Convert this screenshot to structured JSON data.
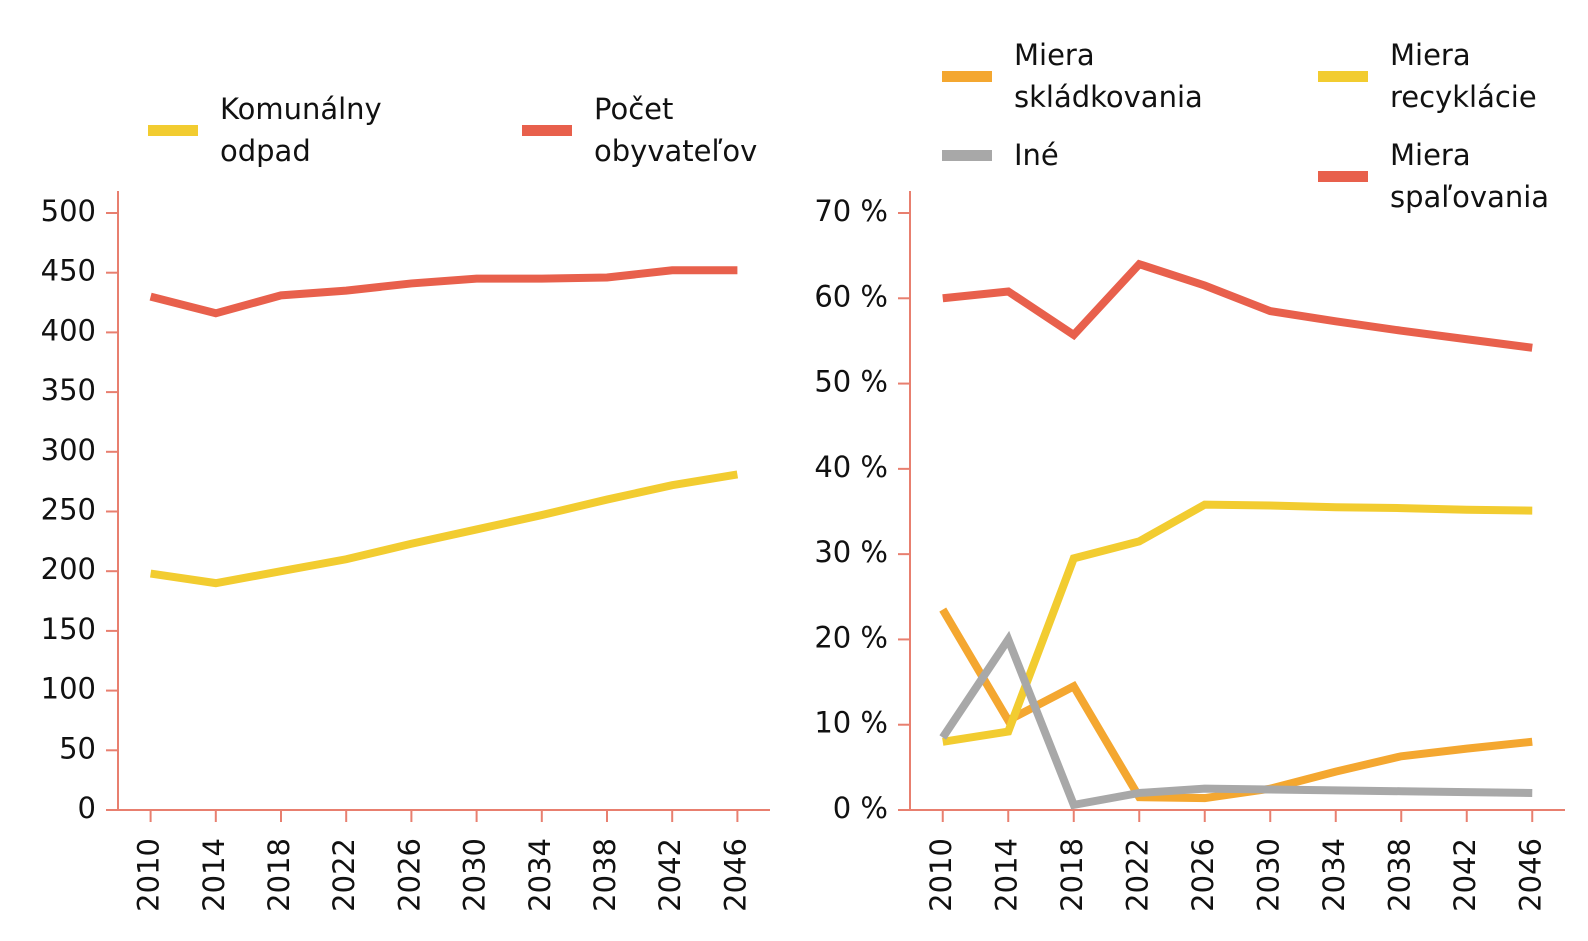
{
  "chart_data": [
    {
      "type": "line",
      "x": [
        2010,
        2014,
        2018,
        2022,
        2026,
        2030,
        2034,
        2038,
        2042,
        2046
      ],
      "series": [
        {
          "name": "Komunálny odpad",
          "color": "#f2cc30",
          "values": [
            198,
            190,
            200,
            210,
            223,
            235,
            247,
            260,
            272,
            281
          ]
        },
        {
          "name": "Počet obyvateľov",
          "color": "#e8604c",
          "values": [
            430,
            416,
            431,
            435,
            441,
            445,
            445,
            446,
            452,
            452
          ]
        }
      ],
      "xlim": [
        2008,
        2048
      ],
      "xticks": [
        2010,
        2014,
        2018,
        2022,
        2026,
        2030,
        2034,
        2038,
        2042,
        2046
      ],
      "ylim": [
        0,
        500
      ],
      "yticks": [
        0,
        50,
        100,
        150,
        200,
        250,
        300,
        350,
        400,
        450,
        500
      ]
    },
    {
      "type": "line",
      "x": [
        2010,
        2014,
        2018,
        2022,
        2026,
        2030,
        2034,
        2038,
        2042,
        2046
      ],
      "series": [
        {
          "name": "Miera skládkovania",
          "color": "#f4a730",
          "values": [
            23.5,
            10.5,
            14.5,
            1.5,
            1.4,
            2.5,
            4.5,
            6.3,
            7.2,
            8
          ]
        },
        {
          "name": "Miera recyklácie",
          "color": "#f2cc30",
          "values": [
            8,
            9.2,
            29.5,
            31.5,
            35.8,
            35.7,
            35.5,
            35.4,
            35.2,
            35.1
          ]
        },
        {
          "name": "Iné",
          "color": "#a8a8a8",
          "values": [
            8.5,
            20,
            0.6,
            2,
            2.5,
            2.4,
            2.3,
            2.2,
            2.1,
            2.0
          ]
        },
        {
          "name": "Miera spaľovania",
          "color": "#e8604c",
          "values": [
            60,
            60.8,
            55.7,
            64,
            61.5,
            58.5,
            57.3,
            56.2,
            55.2,
            54.2
          ]
        }
      ],
      "xlim": [
        2008,
        2048
      ],
      "xticks": [
        2010,
        2014,
        2018,
        2022,
        2026,
        2030,
        2034,
        2038,
        2042,
        2046
      ],
      "ylim": [
        0,
        70
      ],
      "yticks": [
        {
          "value": 0,
          "label": "0 %"
        },
        {
          "value": 10,
          "label": "10 %"
        },
        {
          "value": 20,
          "label": "20 %"
        },
        {
          "value": 30,
          "label": "30 %"
        },
        {
          "value": 40,
          "label": "40 %"
        },
        {
          "value": 50,
          "label": "50 %"
        },
        {
          "value": 60,
          "label": "60 %"
        },
        {
          "value": 70,
          "label": "70 %"
        }
      ]
    }
  ]
}
